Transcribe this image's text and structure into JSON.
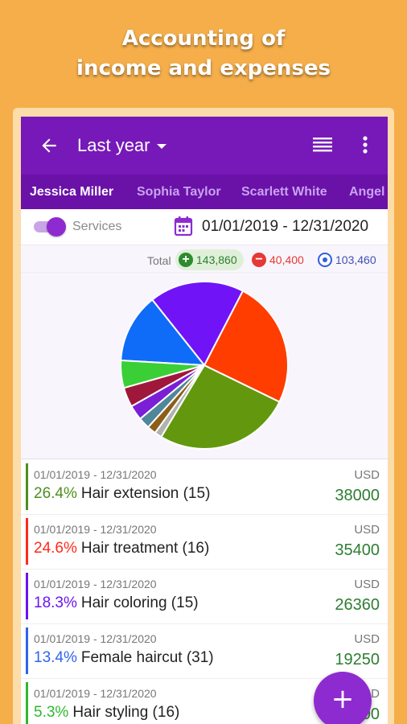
{
  "promo": {
    "line1": "Accounting of",
    "line2": "income and expenses"
  },
  "appbar": {
    "title": "Last year",
    "back_icon": "arrow-left-icon",
    "list_icon": "list-view-icon",
    "more_icon": "more-vertical-icon"
  },
  "tabs": [
    "Jessica Miller",
    "Sophia Taylor",
    "Scarlett White",
    "Angel"
  ],
  "filters": {
    "switch_label": "Services",
    "switch_on": true,
    "date_range": "01/01/2019 - 12/31/2020"
  },
  "totals": {
    "label": "Total",
    "income": "143,860",
    "expense": "40,400",
    "balance": "103,460"
  },
  "chart_data": {
    "type": "pie",
    "slices": [
      {
        "value": 26.4,
        "color": "#63980E"
      },
      {
        "value": 24.6,
        "color": "#FF3D00"
      },
      {
        "value": 18.3,
        "color": "#7014F7"
      },
      {
        "value": 13.4,
        "color": "#0E6CF9"
      },
      {
        "value": 5.3,
        "color": "#3ACF37"
      },
      {
        "value": 3.8,
        "color": "#A0173C"
      },
      {
        "value": 2.9,
        "color": "#7B1FD6"
      },
      {
        "value": 2.2,
        "color": "#50869A"
      },
      {
        "value": 1.7,
        "color": "#8C5E1A"
      },
      {
        "value": 1.4,
        "color": "#B0B3B0"
      }
    ]
  },
  "rows": [
    {
      "date": "01/01/2019 - 12/31/2020",
      "pct": "26.4%",
      "name": "Hair extension (15)",
      "currency": "USD",
      "amount": "38000",
      "color": "#4E8E1E"
    },
    {
      "date": "01/01/2019 - 12/31/2020",
      "pct": "24.6%",
      "name": "Hair treatment (16)",
      "currency": "USD",
      "amount": "35400",
      "color": "#FF2A1A"
    },
    {
      "date": "01/01/2019 - 12/31/2020",
      "pct": "18.3%",
      "name": "Hair coloring (15)",
      "currency": "USD",
      "amount": "26360",
      "color": "#6A14F0"
    },
    {
      "date": "01/01/2019 - 12/31/2020",
      "pct": "13.4%",
      "name": "Female haircut (31)",
      "currency": "USD",
      "amount": "19250",
      "color": "#2F63F0"
    },
    {
      "date": "01/01/2019 - 12/31/2020",
      "pct": "5.3%",
      "name": "Hair styling (16)",
      "currency": "USD",
      "amount": "7600",
      "color": "#2FB82F"
    }
  ],
  "fab": {
    "label": "+",
    "icon": "plus-icon"
  }
}
